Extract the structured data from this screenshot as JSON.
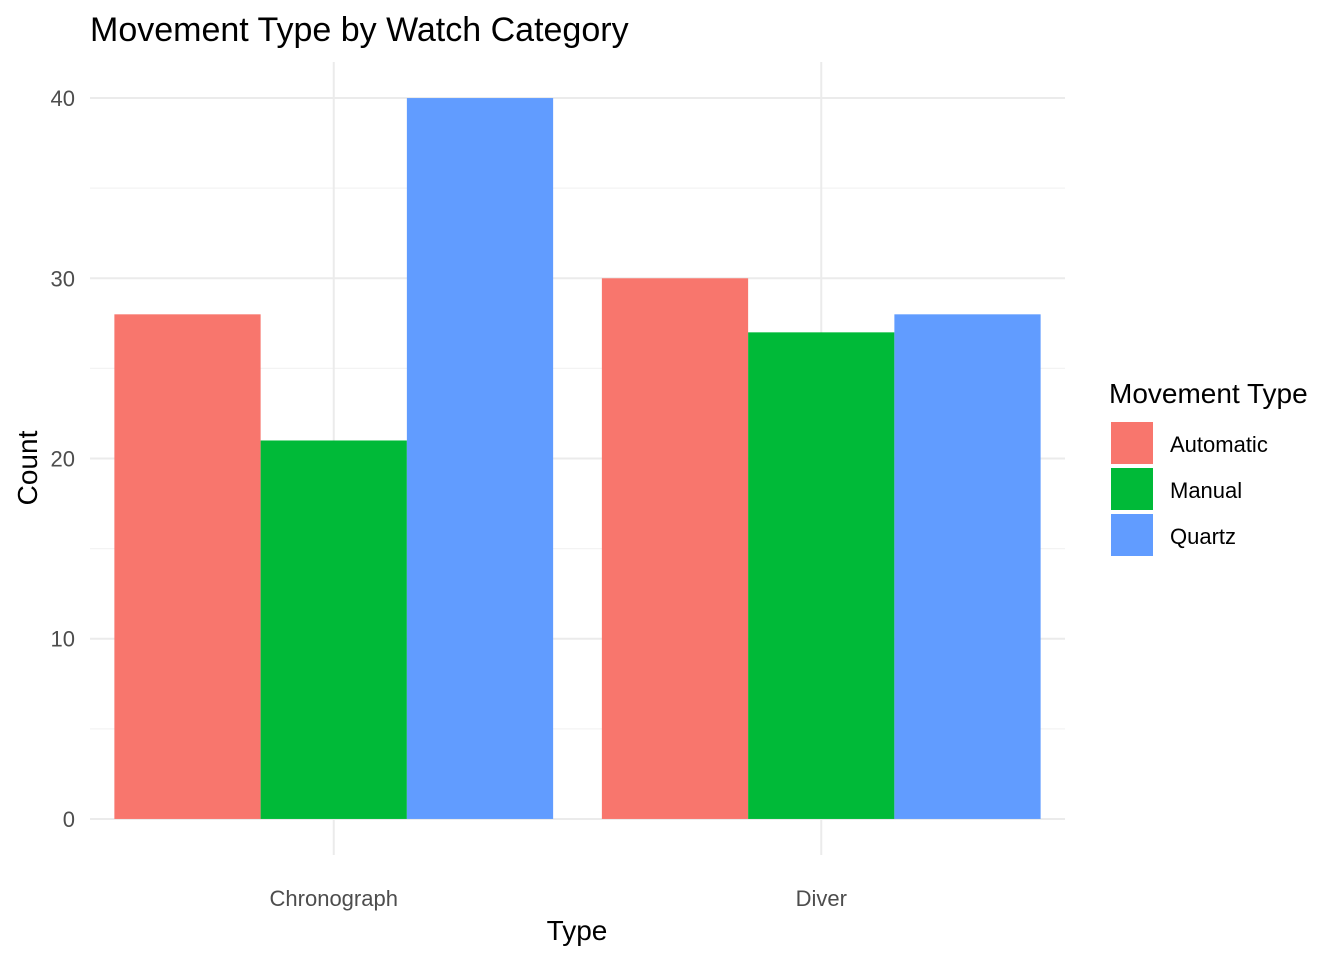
{
  "chart_data": {
    "type": "bar",
    "title": "Movement Type by Watch Category",
    "xlabel": "Type",
    "ylabel": "Count",
    "categories": [
      "Chronograph",
      "Diver"
    ],
    "series": [
      {
        "name": "Automatic",
        "values": [
          28,
          30
        ],
        "color": "#F8766D"
      },
      {
        "name": "Manual",
        "values": [
          21,
          27
        ],
        "color": "#00BA38"
      },
      {
        "name": "Quartz",
        "values": [
          40,
          28
        ],
        "color": "#619CFF"
      }
    ],
    "ylim": [
      -2,
      42
    ],
    "yticks": [
      0,
      10,
      20,
      30,
      40
    ],
    "grid": true,
    "legend": {
      "title": "Movement Type",
      "position": "right"
    }
  }
}
